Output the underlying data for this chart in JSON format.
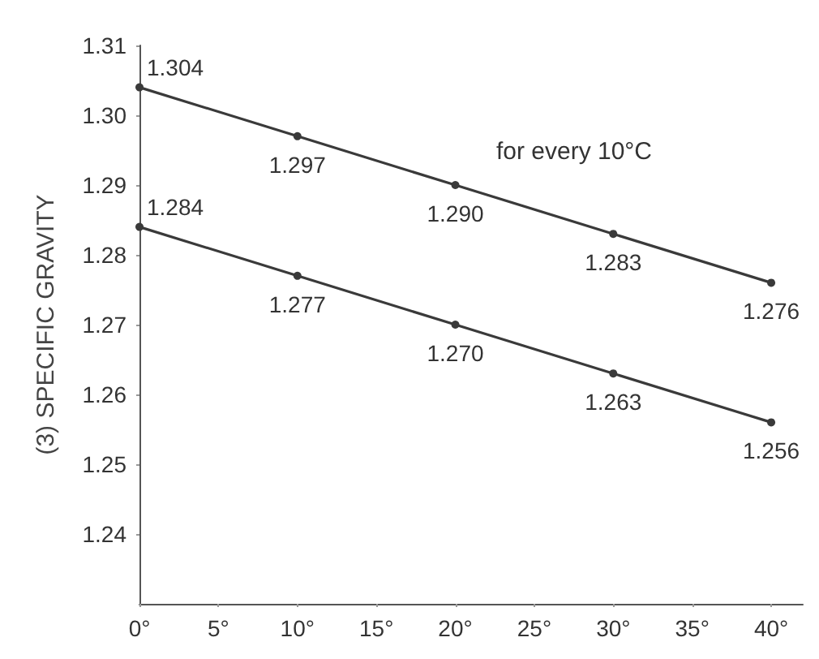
{
  "chart_data": {
    "type": "line",
    "ylabel": "(3) SPECIFIC GRAVITY",
    "x": [
      0,
      10,
      20,
      30,
      40
    ],
    "series": [
      {
        "color": "#3a3a3a",
        "values": [
          1.304,
          1.297,
          1.29,
          1.283,
          1.276
        ],
        "value_labels": [
          "1.304",
          "1.297",
          "1.290",
          "1.283",
          "1.276"
        ]
      },
      {
        "color": "#3a3a3a",
        "values": [
          1.284,
          1.277,
          1.27,
          1.263,
          1.256
        ],
        "value_labels": [
          "1.284",
          "1.277",
          "1.270",
          "1.263",
          "1.256"
        ]
      }
    ],
    "xlim": [
      0,
      42
    ],
    "xticks": [
      {
        "value": 0,
        "label": "0°"
      },
      {
        "value": 5,
        "label": "5°"
      },
      {
        "value": 10,
        "label": "10°"
      },
      {
        "value": 15,
        "label": "15°"
      },
      {
        "value": 20,
        "label": "20°"
      },
      {
        "value": 25,
        "label": "25°"
      },
      {
        "value": 30,
        "label": "30°"
      },
      {
        "value": 35,
        "label": "35°"
      },
      {
        "value": 40,
        "label": "40°"
      }
    ],
    "ylim": [
      1.23,
      1.31
    ],
    "yticks": [
      1.24,
      1.25,
      1.26,
      1.27,
      1.28,
      1.29,
      {
        "value": 1.3,
        "label": "1.30"
      },
      1.31
    ],
    "annotations": [
      "for every 10°C"
    ],
    "grid": false,
    "marker": "circle",
    "line_style": "solid"
  }
}
